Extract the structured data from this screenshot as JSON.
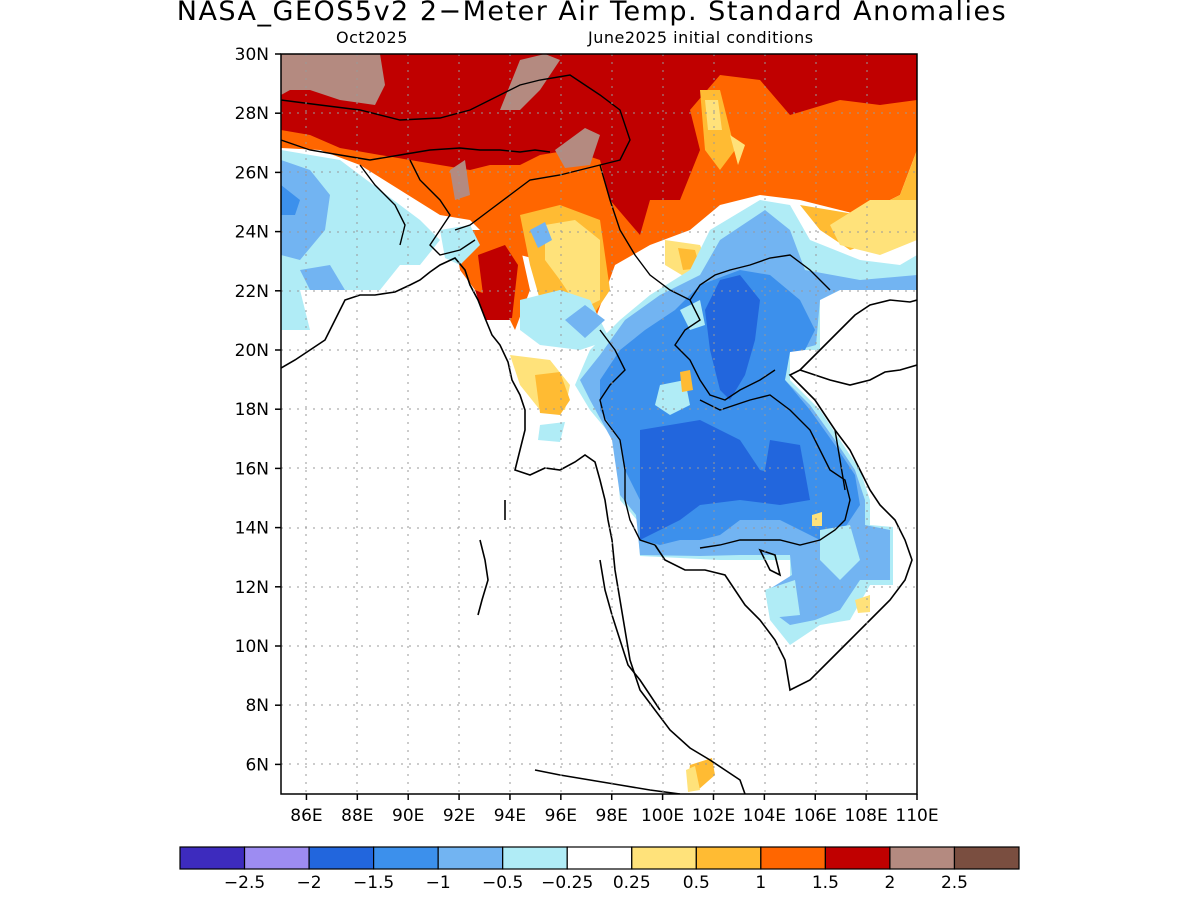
{
  "title": "NASA_GEOS5v2 2−Meter Air Temp. Standard Anomalies",
  "subtitle_left": "Oct2025",
  "subtitle_right": "June2025 initial conditions",
  "map": {
    "lat_range": [
      5,
      30
    ],
    "lon_range": [
      85,
      110
    ],
    "grid": true,
    "lat_ticks": [
      "30N",
      "28N",
      "26N",
      "24N",
      "22N",
      "20N",
      "18N",
      "16N",
      "14N",
      "12N",
      "10N",
      "8N",
      "6N"
    ],
    "lon_ticks": [
      "86E",
      "88E",
      "90E",
      "92E",
      "94E",
      "96E",
      "98E",
      "100E",
      "102E",
      "104E",
      "106E",
      "108E",
      "110E"
    ]
  },
  "colorbar": {
    "colors": [
      "#3d2bbe",
      "#9d8cf2",
      "#2266dd",
      "#3c90ec",
      "#72b4f2",
      "#b0ecf6",
      "#ffffff",
      "#ffe27a",
      "#ffbb33",
      "#ff6600",
      "#c00000",
      "#b48a80",
      "#7a4e40"
    ],
    "labels": [
      "−2.5",
      "−2",
      "−1.5",
      "−1",
      "−0.5",
      "−0.25",
      "0.25",
      "0.5",
      "1",
      "1.5",
      "2",
      "2.5"
    ]
  }
}
